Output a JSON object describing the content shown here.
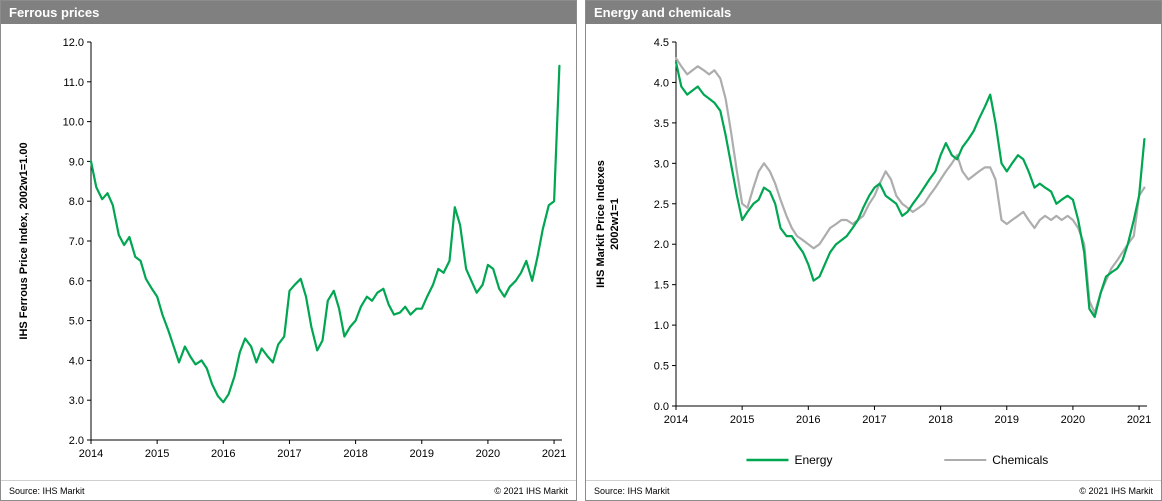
{
  "colors": {
    "accent_green": "#00A651",
    "chemicals_gray": "#ADADAD",
    "title_bar_bg": "#808080"
  },
  "footer": {
    "source": "Source:  IHS Markit",
    "copyright": "© 2021  IHS Markit"
  },
  "chart_data": [
    {
      "type": "line",
      "title": "Ferrous prices",
      "ylabel_lines": [
        "IHS Ferrous Price Index, 2002w1=1.00"
      ],
      "xlabel": "",
      "xlim": [
        2014,
        2021.12
      ],
      "ylim": [
        2.0,
        12.0
      ],
      "ytick_step": 1.0,
      "ytick_decimals": 1,
      "xticks": [
        2014,
        2015,
        2016,
        2017,
        2018,
        2019,
        2020,
        2021
      ],
      "grid": false,
      "legend": false,
      "x": [
        2014.0,
        2014.08,
        2014.17,
        2014.25,
        2014.33,
        2014.42,
        2014.5,
        2014.58,
        2014.67,
        2014.75,
        2014.83,
        2014.92,
        2015.0,
        2015.08,
        2015.17,
        2015.25,
        2015.33,
        2015.42,
        2015.5,
        2015.58,
        2015.67,
        2015.75,
        2015.83,
        2015.92,
        2016.0,
        2016.08,
        2016.17,
        2016.25,
        2016.33,
        2016.42,
        2016.5,
        2016.58,
        2016.67,
        2016.75,
        2016.83,
        2016.92,
        2017.0,
        2017.08,
        2017.17,
        2017.25,
        2017.33,
        2017.42,
        2017.5,
        2017.58,
        2017.67,
        2017.75,
        2017.83,
        2017.92,
        2018.0,
        2018.08,
        2018.17,
        2018.25,
        2018.33,
        2018.42,
        2018.5,
        2018.58,
        2018.67,
        2018.75,
        2018.83,
        2018.92,
        2019.0,
        2019.08,
        2019.17,
        2019.25,
        2019.33,
        2019.42,
        2019.5,
        2019.58,
        2019.67,
        2019.75,
        2019.83,
        2019.92,
        2020.0,
        2020.08,
        2020.17,
        2020.25,
        2020.33,
        2020.42,
        2020.5,
        2020.58,
        2020.67,
        2020.75,
        2020.83,
        2020.92,
        2021.0,
        2021.08
      ],
      "series": [
        {
          "name": "IHS Ferrous Price Index",
          "color": "#00A651",
          "values": [
            9.0,
            8.35,
            8.05,
            8.2,
            7.9,
            7.15,
            6.9,
            7.1,
            6.6,
            6.5,
            6.05,
            5.8,
            5.6,
            5.15,
            4.75,
            4.35,
            3.95,
            4.35,
            4.1,
            3.9,
            4.0,
            3.8,
            3.4,
            3.1,
            2.95,
            3.15,
            3.6,
            4.2,
            4.55,
            4.35,
            3.95,
            4.3,
            4.1,
            3.95,
            4.4,
            4.6,
            5.75,
            5.9,
            6.05,
            5.6,
            4.85,
            4.25,
            4.5,
            5.5,
            5.75,
            5.3,
            4.6,
            4.85,
            5.0,
            5.35,
            5.6,
            5.5,
            5.7,
            5.8,
            5.4,
            5.15,
            5.2,
            5.35,
            5.15,
            5.3,
            5.3,
            5.6,
            5.9,
            6.3,
            6.2,
            6.5,
            7.85,
            7.4,
            6.3,
            6.0,
            5.7,
            5.9,
            6.4,
            6.3,
            5.8,
            5.6,
            5.85,
            6.0,
            6.2,
            6.5,
            6.0,
            6.6,
            7.3,
            7.9,
            8.0,
            11.4
          ]
        }
      ]
    },
    {
      "type": "line",
      "title": "Energy and chemicals",
      "ylabel_lines": [
        "IHS Markit Price Indexes",
        "2002w1=1"
      ],
      "xlabel": "",
      "xlim": [
        2014,
        2021.12
      ],
      "ylim": [
        0.0,
        4.5
      ],
      "ytick_step": 0.5,
      "ytick_decimals": 1,
      "xticks": [
        2014,
        2015,
        2016,
        2017,
        2018,
        2019,
        2020,
        2021
      ],
      "grid": false,
      "legend": true,
      "legend_position": "bottom",
      "x": [
        2014.0,
        2014.08,
        2014.17,
        2014.25,
        2014.33,
        2014.42,
        2014.5,
        2014.58,
        2014.67,
        2014.75,
        2014.83,
        2014.92,
        2015.0,
        2015.08,
        2015.17,
        2015.25,
        2015.33,
        2015.42,
        2015.5,
        2015.58,
        2015.67,
        2015.75,
        2015.83,
        2015.92,
        2016.0,
        2016.08,
        2016.17,
        2016.25,
        2016.33,
        2016.42,
        2016.5,
        2016.58,
        2016.67,
        2016.75,
        2016.83,
        2016.92,
        2017.0,
        2017.08,
        2017.17,
        2017.25,
        2017.33,
        2017.42,
        2017.5,
        2017.58,
        2017.67,
        2017.75,
        2017.83,
        2017.92,
        2018.0,
        2018.08,
        2018.17,
        2018.25,
        2018.33,
        2018.42,
        2018.5,
        2018.58,
        2018.67,
        2018.75,
        2018.83,
        2018.92,
        2019.0,
        2019.08,
        2019.17,
        2019.25,
        2019.33,
        2019.42,
        2019.5,
        2019.58,
        2019.67,
        2019.75,
        2019.83,
        2019.92,
        2020.0,
        2020.08,
        2020.17,
        2020.25,
        2020.33,
        2020.42,
        2020.5,
        2020.58,
        2020.67,
        2020.75,
        2020.83,
        2020.92,
        2021.0,
        2021.08
      ],
      "series": [
        {
          "name": "Energy",
          "color": "#00A651",
          "values": [
            4.25,
            3.95,
            3.85,
            3.9,
            3.95,
            3.85,
            3.8,
            3.75,
            3.65,
            3.35,
            3.0,
            2.6,
            2.3,
            2.4,
            2.5,
            2.55,
            2.7,
            2.65,
            2.5,
            2.2,
            2.1,
            2.1,
            2.0,
            1.9,
            1.75,
            1.55,
            1.6,
            1.75,
            1.9,
            2.0,
            2.05,
            2.1,
            2.2,
            2.3,
            2.45,
            2.6,
            2.7,
            2.75,
            2.6,
            2.55,
            2.5,
            2.35,
            2.4,
            2.5,
            2.6,
            2.7,
            2.8,
            2.9,
            3.1,
            3.25,
            3.1,
            3.05,
            3.2,
            3.3,
            3.4,
            3.55,
            3.7,
            3.85,
            3.5,
            3.0,
            2.9,
            3.0,
            3.1,
            3.05,
            2.9,
            2.7,
            2.75,
            2.7,
            2.65,
            2.5,
            2.55,
            2.6,
            2.55,
            2.3,
            1.9,
            1.2,
            1.1,
            1.4,
            1.6,
            1.65,
            1.7,
            1.8,
            2.0,
            2.3,
            2.6,
            3.3
          ]
        },
        {
          "name": "Chemicals",
          "color": "#ADADAD",
          "values": [
            4.3,
            4.2,
            4.1,
            4.15,
            4.2,
            4.15,
            4.1,
            4.15,
            4.05,
            3.8,
            3.4,
            2.9,
            2.5,
            2.45,
            2.7,
            2.9,
            3.0,
            2.9,
            2.75,
            2.55,
            2.35,
            2.2,
            2.1,
            2.05,
            2.0,
            1.95,
            2.0,
            2.1,
            2.2,
            2.25,
            2.3,
            2.3,
            2.25,
            2.3,
            2.35,
            2.5,
            2.6,
            2.75,
            2.9,
            2.8,
            2.6,
            2.5,
            2.45,
            2.4,
            2.45,
            2.5,
            2.6,
            2.7,
            2.8,
            2.9,
            3.0,
            3.1,
            2.9,
            2.8,
            2.85,
            2.9,
            2.95,
            2.95,
            2.8,
            2.3,
            2.25,
            2.3,
            2.35,
            2.4,
            2.3,
            2.2,
            2.3,
            2.35,
            2.3,
            2.35,
            2.3,
            2.35,
            2.3,
            2.2,
            2.0,
            1.3,
            1.15,
            1.4,
            1.55,
            1.7,
            1.8,
            1.9,
            2.0,
            2.1,
            2.6,
            2.7
          ]
        }
      ]
    }
  ]
}
